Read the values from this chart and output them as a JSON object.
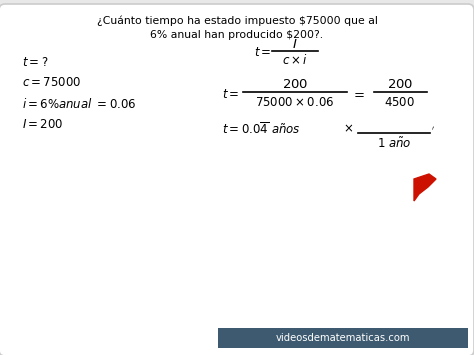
{
  "bg_color": "#e8e8e8",
  "card_bg": "#ffffff",
  "card_edge": "#cccccc",
  "title_line1": "¿Cuánto tiempo ha estado impuesto $75000 que al",
  "title_line2": "6% anual han producido $200?.",
  "watermark_bg": "#3d5a70",
  "watermark_text": "videosdematematicas.com",
  "watermark_color": "#ffffff",
  "arrow_color": "#cc1100",
  "text_color": "#000000"
}
